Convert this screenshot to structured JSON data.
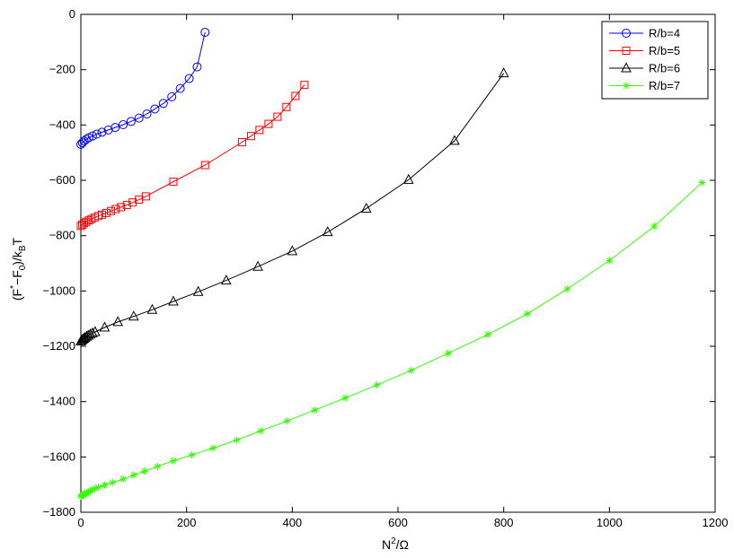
{
  "chart_data": {
    "type": "line",
    "title": "",
    "xlabel": {
      "base": "N",
      "sup": "2",
      "rest": "/Ω"
    },
    "ylabel": {
      "a": "(F",
      "sup": "*",
      "b": "−F",
      "sub1": "0",
      "c": ")/k",
      "sub2": "B",
      "d": "T"
    },
    "xlim": [
      0,
      1200
    ],
    "ylim": [
      -1800,
      0
    ],
    "xticks": [
      0,
      200,
      400,
      600,
      800,
      1000,
      1200
    ],
    "yticks": [
      0,
      -200,
      -400,
      -600,
      -800,
      -1000,
      -1200,
      -1400,
      -1600,
      -1800
    ],
    "xtick_labels": [
      "0",
      "200",
      "400",
      "600",
      "800",
      "1000",
      "1200"
    ],
    "ytick_labels": [
      "0",
      "−200",
      "−400",
      "−600",
      "−800",
      "−1000",
      "−1200",
      "−1400",
      "−1600",
      "−1800"
    ],
    "grid": false,
    "legend_position": "top-right",
    "series": [
      {
        "name": "R/b=4",
        "color": "#0000ff",
        "marker": "circle",
        "x": [
          0,
          3,
          6,
          10,
          15,
          22,
          30,
          40,
          52,
          65,
          80,
          95,
          110,
          125,
          140,
          156,
          172,
          188,
          205,
          220,
          235
        ],
        "y": [
          -470,
          -464,
          -458,
          -452,
          -446,
          -440,
          -433,
          -426,
          -418,
          -409,
          -399,
          -387,
          -375,
          -360,
          -342,
          -322,
          -298,
          -268,
          -232,
          -190,
          -65
        ]
      },
      {
        "name": "R/b=5",
        "color": "#ff0000",
        "marker": "square",
        "x": [
          0,
          3,
          6,
          10,
          15,
          20,
          26,
          33,
          40,
          48,
          57,
          66,
          76,
          87,
          98,
          110,
          123,
          175,
          235,
          305,
          322,
          338,
          355,
          372,
          389,
          406,
          423
        ],
        "y": [
          -765,
          -760,
          -755,
          -750,
          -745,
          -740,
          -735,
          -729,
          -724,
          -718,
          -711,
          -704,
          -697,
          -689,
          -680,
          -670,
          -658,
          -605,
          -545,
          -462,
          -440,
          -418,
          -396,
          -370,
          -335,
          -295,
          -255
        ]
      },
      {
        "name": "R/b=6",
        "color": "#000000",
        "marker": "triangle",
        "x": [
          0,
          2,
          4,
          6,
          8,
          11,
          14,
          18,
          22,
          27,
          45,
          70,
          100,
          135,
          175,
          222,
          275,
          335,
          400,
          467,
          540,
          620,
          707,
          800
        ],
        "y": [
          -1182,
          -1178,
          -1175,
          -1172,
          -1169,
          -1165,
          -1161,
          -1157,
          -1153,
          -1148,
          -1132,
          -1112,
          -1092,
          -1068,
          -1038,
          -1003,
          -962,
          -912,
          -856,
          -787,
          -702,
          -598,
          -457,
          -213
        ]
      },
      {
        "name": "R/b=7",
        "color": "#33ff00",
        "marker": "star",
        "x": [
          0,
          2,
          4,
          6,
          8,
          11,
          14,
          18,
          22,
          27,
          33,
          45,
          60,
          80,
          100,
          120,
          145,
          175,
          210,
          250,
          295,
          340,
          390,
          442,
          500,
          560,
          625,
          695,
          770,
          845,
          920,
          1000,
          1085,
          1175
        ],
        "y": [
          -1742,
          -1740,
          -1738,
          -1736,
          -1733,
          -1730,
          -1727,
          -1723,
          -1719,
          -1714,
          -1709,
          -1702,
          -1692,
          -1680,
          -1666,
          -1652,
          -1634,
          -1614,
          -1593,
          -1568,
          -1539,
          -1506,
          -1470,
          -1431,
          -1387,
          -1340,
          -1287,
          -1225,
          -1158,
          -1082,
          -993,
          -890,
          -766,
          -608
        ]
      }
    ]
  }
}
